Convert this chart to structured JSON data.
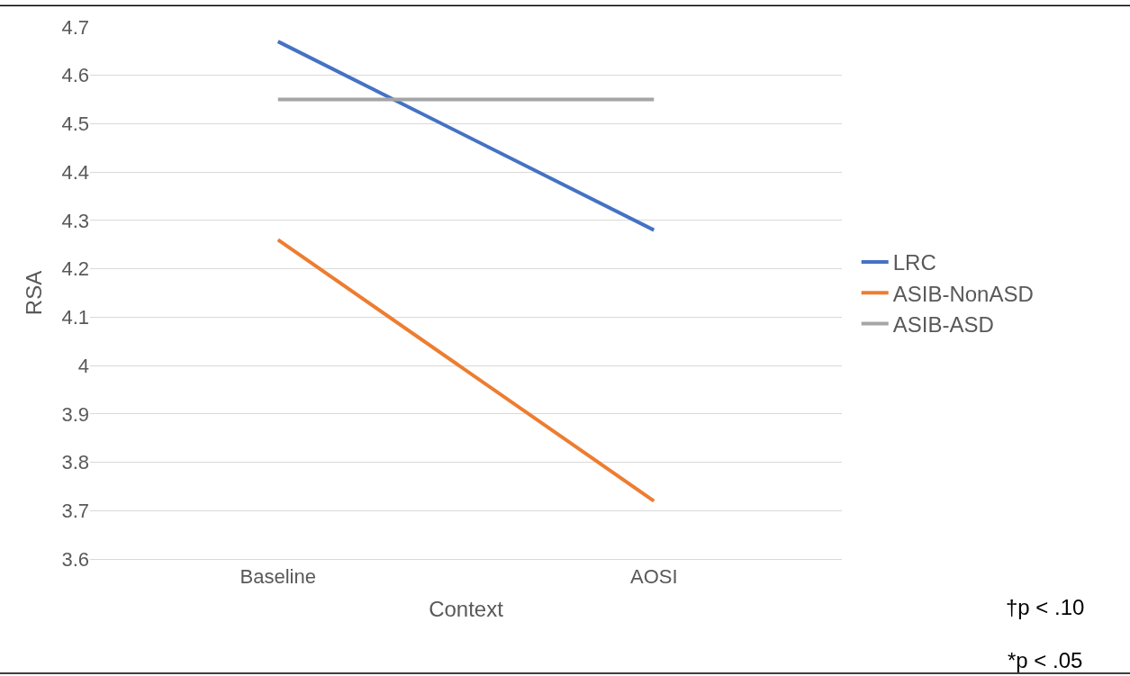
{
  "chart_data": {
    "type": "line",
    "xlabel": "Context",
    "ylabel": "RSA",
    "categories": [
      "Baseline",
      "AOSI"
    ],
    "series": [
      {
        "name": "LRC",
        "color": "#4472c4",
        "values": [
          4.67,
          4.28
        ]
      },
      {
        "name": "ASIB-NonASD",
        "color": "#ed7d31",
        "values": [
          4.26,
          3.72
        ]
      },
      {
        "name": "ASIB-ASD",
        "color": "#a5a5a5",
        "values": [
          4.55,
          4.55
        ]
      }
    ],
    "ylim": [
      3.6,
      4.7
    ],
    "yticks": [
      3.6,
      3.7,
      3.8,
      3.9,
      4,
      4.1,
      4.2,
      4.3,
      4.4,
      4.5,
      4.6,
      4.7
    ],
    "grid": "y",
    "legend": "right",
    "marker": "none",
    "line_style": "solid",
    "annotations": [
      "†p < .10",
      "*p < .05"
    ]
  }
}
